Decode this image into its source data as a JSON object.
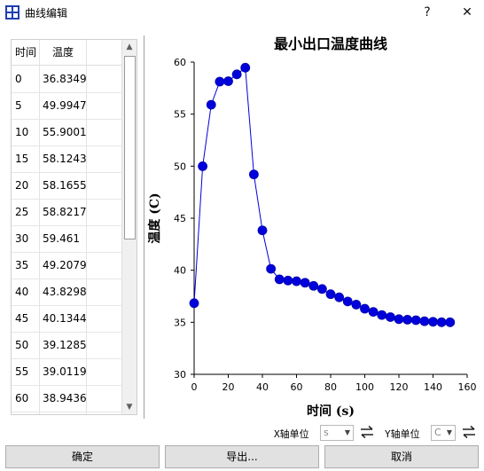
{
  "window": {
    "title": "曲线编辑",
    "help_label": "?",
    "close_label": "✕"
  },
  "table": {
    "headers": [
      "时间",
      "温度"
    ],
    "rows": [
      [
        "0",
        "36.8349"
      ],
      [
        "5",
        "49.9947"
      ],
      [
        "10",
        "55.9001"
      ],
      [
        "15",
        "58.1243"
      ],
      [
        "20",
        "58.1655"
      ],
      [
        "25",
        "58.8217"
      ],
      [
        "30",
        "59.461"
      ],
      [
        "35",
        "49.2079"
      ],
      [
        "40",
        "43.8298"
      ],
      [
        "45",
        "40.1344"
      ],
      [
        "50",
        "39.1285"
      ],
      [
        "55",
        "39.0119"
      ],
      [
        "60",
        "38.9436"
      ]
    ]
  },
  "chart_data": {
    "type": "line",
    "title": "最小出口温度曲线",
    "xlabel": "时间 (s)",
    "ylabel": "温度 (C)",
    "xlim": [
      0,
      160
    ],
    "ylim": [
      30,
      60
    ],
    "xticks": [
      "0",
      "20",
      "40",
      "60",
      "80",
      "100",
      "120",
      "140",
      "160"
    ],
    "yticks": [
      "30",
      "35",
      "40",
      "45",
      "50",
      "55",
      "60"
    ],
    "grid": false,
    "legend": "none",
    "color": "#0000dd",
    "series": [
      {
        "x": [
          0,
          5,
          10,
          15,
          20,
          25,
          30,
          35,
          40,
          45,
          50,
          55,
          60,
          65,
          70,
          75,
          80,
          85,
          90,
          95,
          100,
          105,
          110,
          115,
          120,
          125,
          130,
          135,
          140,
          145,
          150
        ],
        "y": [
          36.8349,
          49.9947,
          55.9001,
          58.1243,
          58.1655,
          58.8217,
          59.461,
          49.2079,
          43.8298,
          40.1344,
          39.1285,
          39.0119,
          38.9436,
          38.8,
          38.5,
          38.2,
          37.7,
          37.4,
          37.0,
          36.7,
          36.3,
          36.0,
          35.7,
          35.5,
          35.3,
          35.25,
          35.2,
          35.1,
          35.05,
          35.0,
          35.0
        ]
      }
    ]
  },
  "units": {
    "x_label": "X轴单位",
    "x_value": "s",
    "y_label": "Y轴单位",
    "y_value": "C",
    "swap_icon": "swap-arrows-icon"
  },
  "buttons": {
    "ok": "确定",
    "export": "导出...",
    "cancel": "取消"
  }
}
